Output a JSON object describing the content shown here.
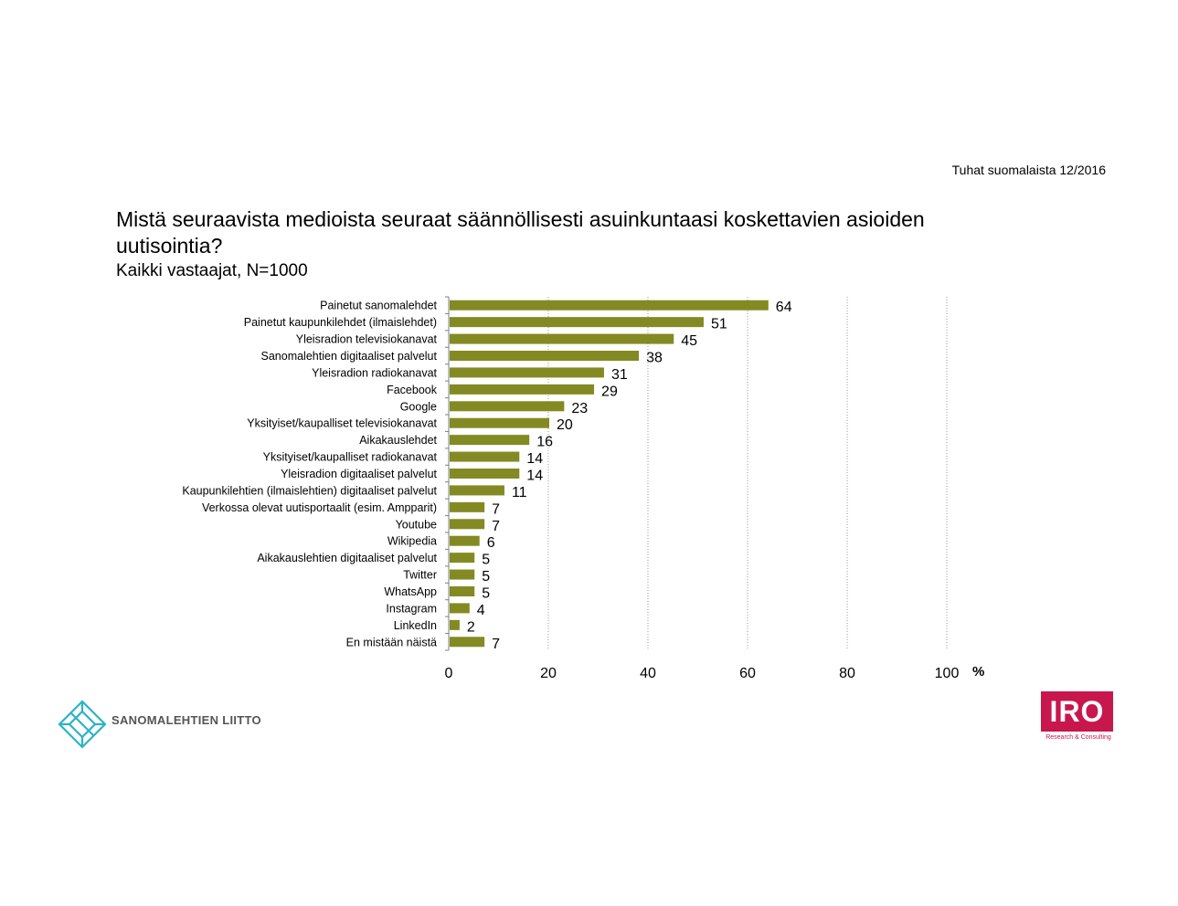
{
  "header": {
    "corner_note": "Tuhat suomalaista 12/2016",
    "title": "Mistä seuraavista medioista seuraat säännöllisesti asuinkuntaasi koskettavien asioiden uutisointia?",
    "subtitle": "Kaikki vastaajat, N=1000"
  },
  "colors": {
    "bar": "#838a23",
    "grid": "#9a9a9a",
    "logo_blue": "#2bb3c8",
    "iro_red": "#c8174d"
  },
  "chart_data": {
    "type": "bar",
    "orientation": "horizontal",
    "categories": [
      "Painetut sanomalehdet",
      "Painetut kaupunkilehdet (ilmaislehdet)",
      "Yleisradion televisiokanavat",
      "Sanomalehtien digitaaliset palvelut",
      "Yleisradion radiokanavat",
      "Facebook",
      "Google",
      "Yksityiset/kaupalliset televisiokanavat",
      "Aikakauslehdet",
      "Yksityiset/kaupalliset radiokanavat",
      "Yleisradion digitaaliset palvelut",
      "Kaupunkilehtien (ilmaislehtien) digitaaliset palvelut",
      "Verkossa olevat uutisportaalit (esim. Ampparit)",
      "Youtube",
      "Wikipedia",
      "Aikakauslehtien digitaaliset palvelut",
      "Twitter",
      "WhatsApp",
      "Instagram",
      "LinkedIn",
      "En mistään näistä"
    ],
    "values": [
      64,
      51,
      45,
      38,
      31,
      29,
      23,
      20,
      16,
      14,
      14,
      11,
      7,
      7,
      6,
      5,
      5,
      5,
      4,
      2,
      7
    ],
    "xlim": [
      0,
      100
    ],
    "xticks": [
      "0",
      "20",
      "40",
      "60",
      "80",
      "100"
    ],
    "xunit": "%",
    "grid": true
  },
  "logos": {
    "left_text": "SANOMALEHTIEN LIITTO",
    "right_text": "IRO",
    "right_tagline": "Research & Consulting"
  }
}
